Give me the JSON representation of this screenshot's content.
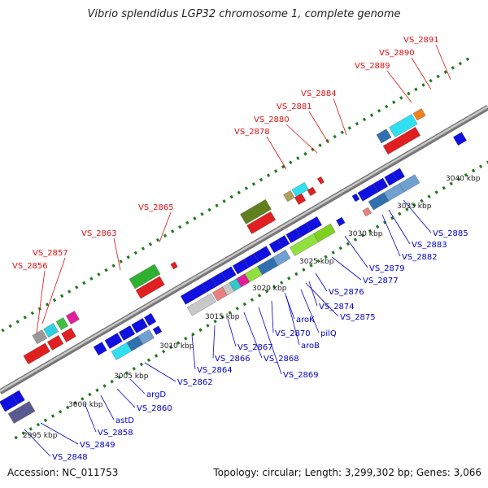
{
  "title": "Vibrio splendidus LGP32 chromosome 1, complete genome",
  "footer": {
    "accession": "Accession: NC_011753",
    "summary": "Topology: circular; Length: 3,299,302 bp; Genes: 3,066"
  },
  "colors": {
    "forward_label": "#e01010",
    "reverse_label": "#0000cc",
    "backbone": "#8a8a8a",
    "tick": "#1f7a1f"
  },
  "scale_labels": [
    "2995 kbp",
    "3000 kbp",
    "3005 kbp",
    "3010 kbp",
    "3015 kbp",
    "3020 kbp",
    "3025 kbp",
    "3030 kbp",
    "3035 kbp",
    "3040 kbp"
  ],
  "forward_genes": [
    "VS_2856",
    "VS_2857",
    "VS_2863",
    "VS_2865",
    "VS_2878",
    "VS_2880",
    "VS_2881",
    "VS_2884",
    "VS_2889",
    "VS_2890",
    "VS_2891"
  ],
  "reverse_genes": [
    "VS_2848",
    "VS_2849",
    "VS_2858",
    "astD",
    "VS_2860",
    "argD",
    "VS_2862",
    "VS_2864",
    "VS_2866",
    "VS_2867",
    "VS_2868",
    "VS_2869",
    "VS_2870",
    "aroB",
    "aroK",
    "pilQ",
    "VS_2875",
    "VS_2874",
    "VS_2876",
    "VS_2877",
    "VS_2879",
    "VS_2882",
    "VS_2883",
    "VS_2885"
  ]
}
